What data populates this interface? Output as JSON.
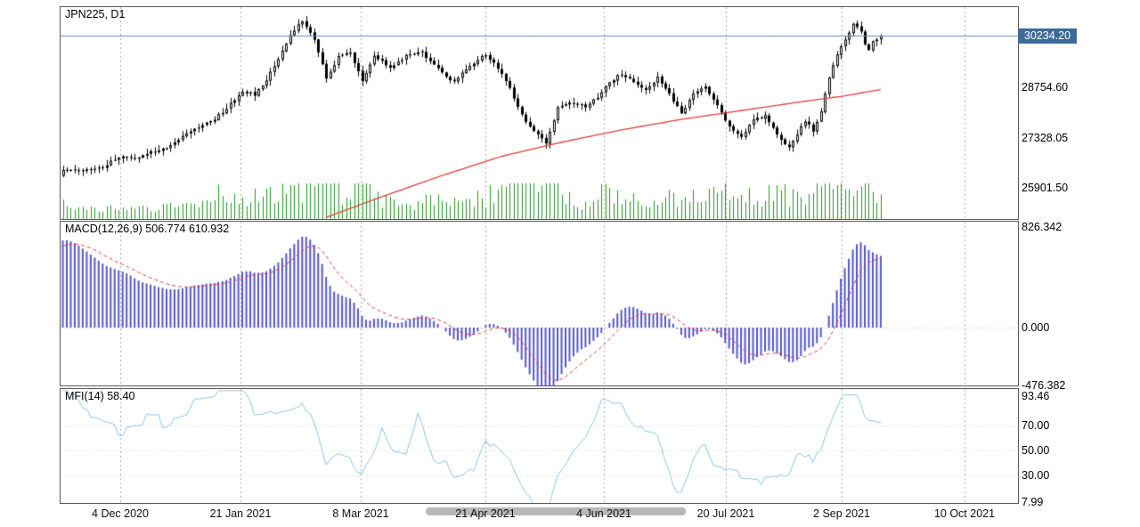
{
  "window": {
    "background": "#ffffff"
  },
  "colors": {
    "volume": "#219421",
    "ma": "#e23b3b",
    "price_line": "#5f8fc4",
    "price_tag_bg": "#3d6b99",
    "macd_bars": "#5555cc",
    "macd_signal": "#e23b3b",
    "mfi_line": "#8fc1e3",
    "grid": "#a8a8a8",
    "candle": "#000000"
  },
  "chart_data": [
    {
      "type": "candlestick",
      "title": "JPN225, D1",
      "symbol": "JPN225",
      "timeframe": "D1",
      "ylim": [
        25015,
        31045
      ],
      "y_ticks": [
        {
          "value": 28754.6,
          "label": "28754.60"
        },
        {
          "value": 27328.05,
          "label": "27328.05"
        },
        {
          "value": 25901.5,
          "label": "25901.50"
        }
      ],
      "current_price": {
        "value": 30234.2,
        "label": "30234.20"
      },
      "candle_count": 206,
      "pre_trend": {
        "bars": 34,
        "start": 22400
      },
      "close_anchors": [
        [
          0,
          26380
        ],
        [
          5,
          26420
        ],
        [
          10,
          26520
        ],
        [
          15,
          26820
        ],
        [
          18,
          26750
        ],
        [
          22,
          26950
        ],
        [
          26,
          27000
        ],
        [
          30,
          27350
        ],
        [
          34,
          27650
        ],
        [
          38,
          27850
        ],
        [
          42,
          28300
        ],
        [
          45,
          28630
        ],
        [
          48,
          28550
        ],
        [
          51,
          28950
        ],
        [
          54,
          29600
        ],
        [
          57,
          30250
        ],
        [
          60,
          30650
        ],
        [
          63,
          30150
        ],
        [
          66,
          29000
        ],
        [
          69,
          29650
        ],
        [
          72,
          29750
        ],
        [
          75,
          28950
        ],
        [
          78,
          29700
        ],
        [
          82,
          29300
        ],
        [
          86,
          29650
        ],
        [
          90,
          29750
        ],
        [
          94,
          29300
        ],
        [
          98,
          28900
        ],
        [
          102,
          29400
        ],
        [
          106,
          29680
        ],
        [
          109,
          29300
        ],
        [
          112,
          28750
        ],
        [
          115,
          27950
        ],
        [
          118,
          27500
        ],
        [
          121,
          27150
        ],
        [
          124,
          28150
        ],
        [
          127,
          28350
        ],
        [
          131,
          28200
        ],
        [
          134,
          28500
        ],
        [
          137,
          28900
        ],
        [
          140,
          29150
        ],
        [
          143,
          28900
        ],
        [
          146,
          28700
        ],
        [
          149,
          29050
        ],
        [
          152,
          28600
        ],
        [
          155,
          28000
        ],
        [
          158,
          28550
        ],
        [
          161,
          28800
        ],
        [
          164,
          28250
        ],
        [
          167,
          27650
        ],
        [
          170,
          27350
        ],
        [
          173,
          27850
        ],
        [
          176,
          27950
        ],
        [
          179,
          27400
        ],
        [
          182,
          27050
        ],
        [
          184,
          27450
        ],
        [
          186,
          27800
        ],
        [
          188,
          27550
        ],
        [
          190,
          28050
        ],
        [
          192,
          29050
        ],
        [
          194,
          29700
        ],
        [
          196,
          30150
        ],
        [
          198,
          30550
        ],
        [
          200,
          30350
        ],
        [
          201,
          29950
        ],
        [
          202,
          29800
        ],
        [
          203,
          30050
        ],
        [
          204,
          30150
        ],
        [
          205,
          30234.2
        ]
      ],
      "volume_anchors": [
        [
          0,
          0.3
        ],
        [
          20,
          0.25
        ],
        [
          40,
          0.45
        ],
        [
          55,
          0.5
        ],
        [
          60,
          0.55
        ],
        [
          67,
          0.95
        ],
        [
          75,
          0.5
        ],
        [
          90,
          0.35
        ],
        [
          100,
          0.45
        ],
        [
          110,
          0.55
        ],
        [
          121,
          0.7
        ],
        [
          130,
          0.45
        ],
        [
          140,
          0.5
        ],
        [
          150,
          0.35
        ],
        [
          160,
          0.5
        ],
        [
          166,
          0.55
        ],
        [
          175,
          0.4
        ],
        [
          182,
          0.5
        ],
        [
          190,
          0.4
        ],
        [
          196,
          0.55
        ],
        [
          205,
          0.5
        ]
      ],
      "ma_red": {
        "anchors": [
          [
            66,
            25060
          ],
          [
            80,
            25650
          ],
          [
            95,
            26250
          ],
          [
            110,
            26800
          ],
          [
            125,
            27200
          ],
          [
            140,
            27550
          ],
          [
            155,
            27850
          ],
          [
            170,
            28100
          ],
          [
            185,
            28350
          ],
          [
            196,
            28520
          ],
          [
            205,
            28700
          ]
        ]
      },
      "x_tick_labels": [
        "4 Dec 2020",
        "21 Jan 2021",
        "8 Mar 2021",
        "21 Apr 2021",
        "4 Jun 2021",
        "20 Jul 2021",
        "2 Sep 2021",
        "10 Oct 2021"
      ]
    },
    {
      "type": "macd",
      "label": "MACD(12,26,9) 506.774 610.932",
      "params": [
        12,
        26,
        9
      ],
      "main_value": 506.774,
      "signal_value": 610.932,
      "ylim": [
        -475,
        870
      ],
      "zero_line": true,
      "y_ticks": [
        {
          "value": 826.342,
          "label": "826.342"
        },
        {
          "value": 0,
          "label": "0.000"
        },
        {
          "value": -476.382,
          "label": "-476.382"
        }
      ]
    },
    {
      "type": "mfi",
      "label": "MFI(14) 58.40",
      "period": 14,
      "current_value": 58.4,
      "ylim": [
        7.9,
        99.3
      ],
      "levels": [
        70,
        50,
        30
      ],
      "y_ticks": [
        {
          "value": 93.46,
          "label": "93.46"
        },
        {
          "value": 70,
          "label": "70.00"
        },
        {
          "value": 50,
          "label": "50.00"
        },
        {
          "value": 30,
          "label": "30.00"
        },
        {
          "value": 7.99,
          "label": "7.99"
        }
      ]
    }
  ]
}
